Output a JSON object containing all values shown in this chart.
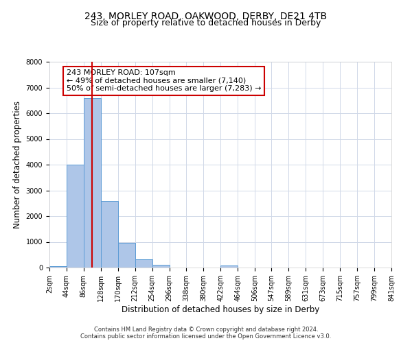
{
  "title1": "243, MORLEY ROAD, OAKWOOD, DERBY, DE21 4TB",
  "title2": "Size of property relative to detached houses in Derby",
  "xlabel": "Distribution of detached houses by size in Derby",
  "ylabel": "Number of detached properties",
  "bar_color": "#aec6e8",
  "bar_edge_color": "#5b9bd5",
  "bin_edges": [
    2,
    44,
    86,
    128,
    170,
    212,
    254,
    296,
    338,
    380,
    422,
    464,
    506,
    547,
    589,
    631,
    673,
    715,
    757,
    799,
    841
  ],
  "bar_heights": [
    60,
    4000,
    6600,
    2600,
    950,
    330,
    120,
    0,
    0,
    0,
    80,
    0,
    0,
    0,
    0,
    0,
    0,
    0,
    0,
    0
  ],
  "tick_labels": [
    "2sqm",
    "44sqm",
    "86sqm",
    "128sqm",
    "170sqm",
    "212sqm",
    "254sqm",
    "296sqm",
    "338sqm",
    "380sqm",
    "422sqm",
    "464sqm",
    "506sqm",
    "547sqm",
    "589sqm",
    "631sqm",
    "673sqm",
    "715sqm",
    "757sqm",
    "799sqm",
    "841sqm"
  ],
  "ylim": [
    0,
    8000
  ],
  "yticks": [
    0,
    1000,
    2000,
    3000,
    4000,
    5000,
    6000,
    7000,
    8000
  ],
  "vline_x": 107,
  "vline_color": "#cc0000",
  "annotation_text": "243 MORLEY ROAD: 107sqm\n← 49% of detached houses are smaller (7,140)\n50% of semi-detached houses are larger (7,283) →",
  "annotation_box_color": "#ffffff",
  "annotation_box_edgecolor": "#cc0000",
  "footer1": "Contains HM Land Registry data © Crown copyright and database right 2024.",
  "footer2": "Contains public sector information licensed under the Open Government Licence v3.0.",
  "bg_color": "#ffffff",
  "grid_color": "#d0d8e8",
  "title_fontsize": 10,
  "subtitle_fontsize": 9,
  "tick_fontsize": 7,
  "ylabel_fontsize": 8.5,
  "xlabel_fontsize": 8.5,
  "footer_fontsize": 6,
  "annot_fontsize": 8
}
